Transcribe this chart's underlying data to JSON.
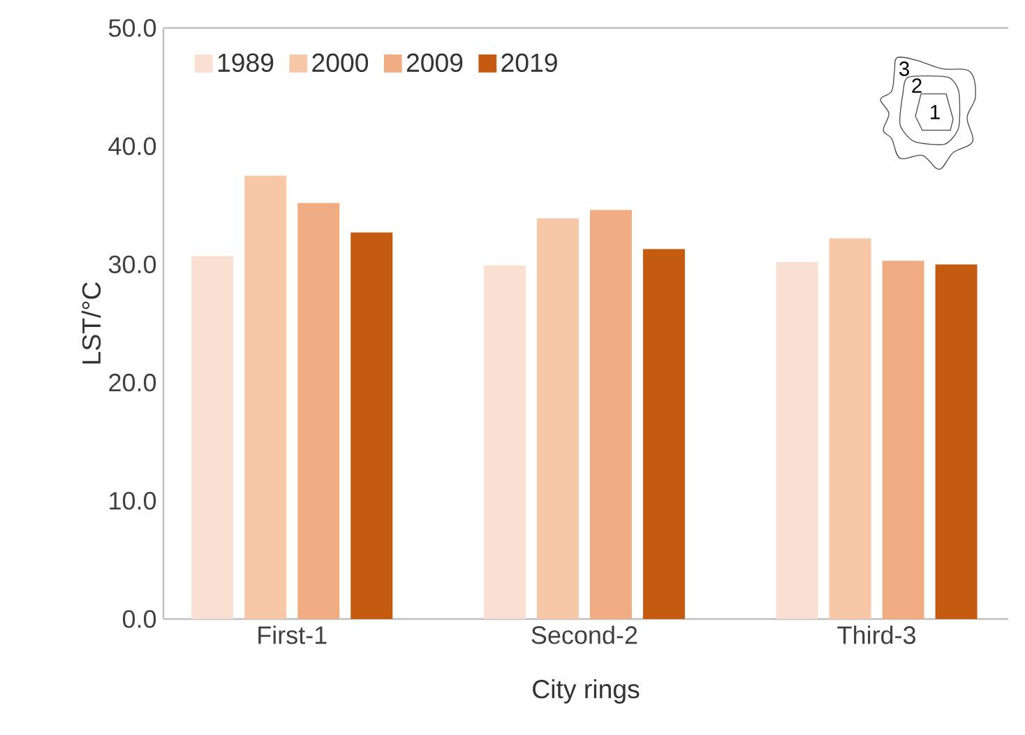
{
  "chart_data": {
    "type": "bar",
    "xlabel": "City rings",
    "ylabel": "LST/°C",
    "categories": [
      "First-1",
      "Second-2",
      "Third-3"
    ],
    "series": [
      {
        "name": "1989",
        "color": "#f9e0d2",
        "values": [
          30.7,
          29.9,
          30.2
        ]
      },
      {
        "name": "2000",
        "color": "#f6c8a8",
        "values": [
          37.5,
          33.9,
          32.2
        ]
      },
      {
        "name": "2009",
        "color": "#f0ad84",
        "values": [
          35.2,
          34.6,
          30.3
        ]
      },
      {
        "name": "2019",
        "color": "#c55a11",
        "values": [
          32.7,
          31.3,
          30.0
        ]
      }
    ],
    "ylim": [
      0,
      50
    ],
    "yticks": [
      {
        "value": 0,
        "label": "0.0"
      },
      {
        "value": 10,
        "label": "10.0"
      },
      {
        "value": 20,
        "label": "20.0"
      },
      {
        "value": 30,
        "label": "30.0"
      },
      {
        "value": 40,
        "label": "40.0"
      },
      {
        "value": 50,
        "label": "50.0"
      }
    ],
    "legend": "top left",
    "grid": false,
    "annotations": [
      "3",
      "2",
      "1"
    ]
  }
}
